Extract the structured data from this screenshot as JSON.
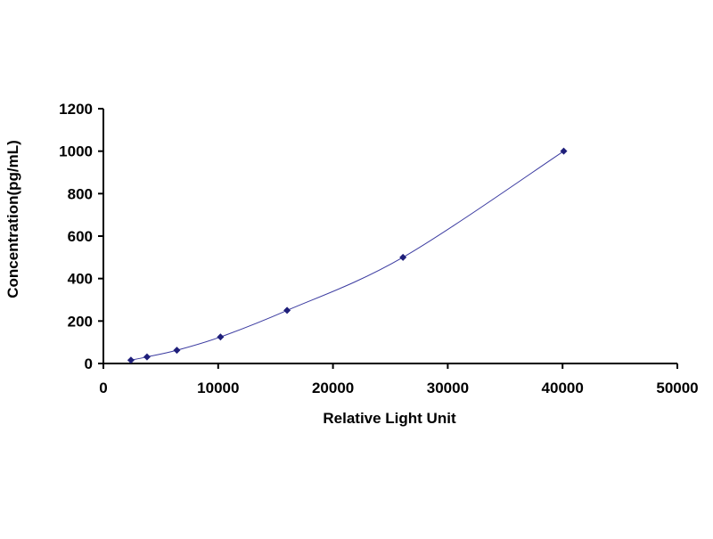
{
  "chart_data": {
    "type": "scatter",
    "title": "",
    "xlabel": "Relative Light Unit",
    "ylabel": "Concentration(pg/mL)",
    "xlim": [
      0,
      50000
    ],
    "ylim": [
      0,
      1200
    ],
    "xticks": [
      0,
      10000,
      20000,
      30000,
      40000,
      50000
    ],
    "yticks": [
      0,
      200,
      400,
      600,
      800,
      1000,
      1200
    ],
    "xtick_labels": [
      "0",
      "10000",
      "20000",
      "30000",
      "40000",
      "50000"
    ],
    "ytick_labels": [
      "0",
      "200",
      "400",
      "600",
      "800",
      "1000",
      "1200"
    ],
    "grid": false,
    "legend": "none",
    "series": [
      {
        "x": [
          2400,
          3800,
          6400,
          10200,
          16000,
          26100,
          40100
        ],
        "y": [
          15.6,
          31.2,
          62.5,
          125,
          250,
          500,
          1000
        ],
        "marker": "diamond",
        "smoothed_line": true,
        "color": "#1f1f7a"
      }
    ]
  }
}
